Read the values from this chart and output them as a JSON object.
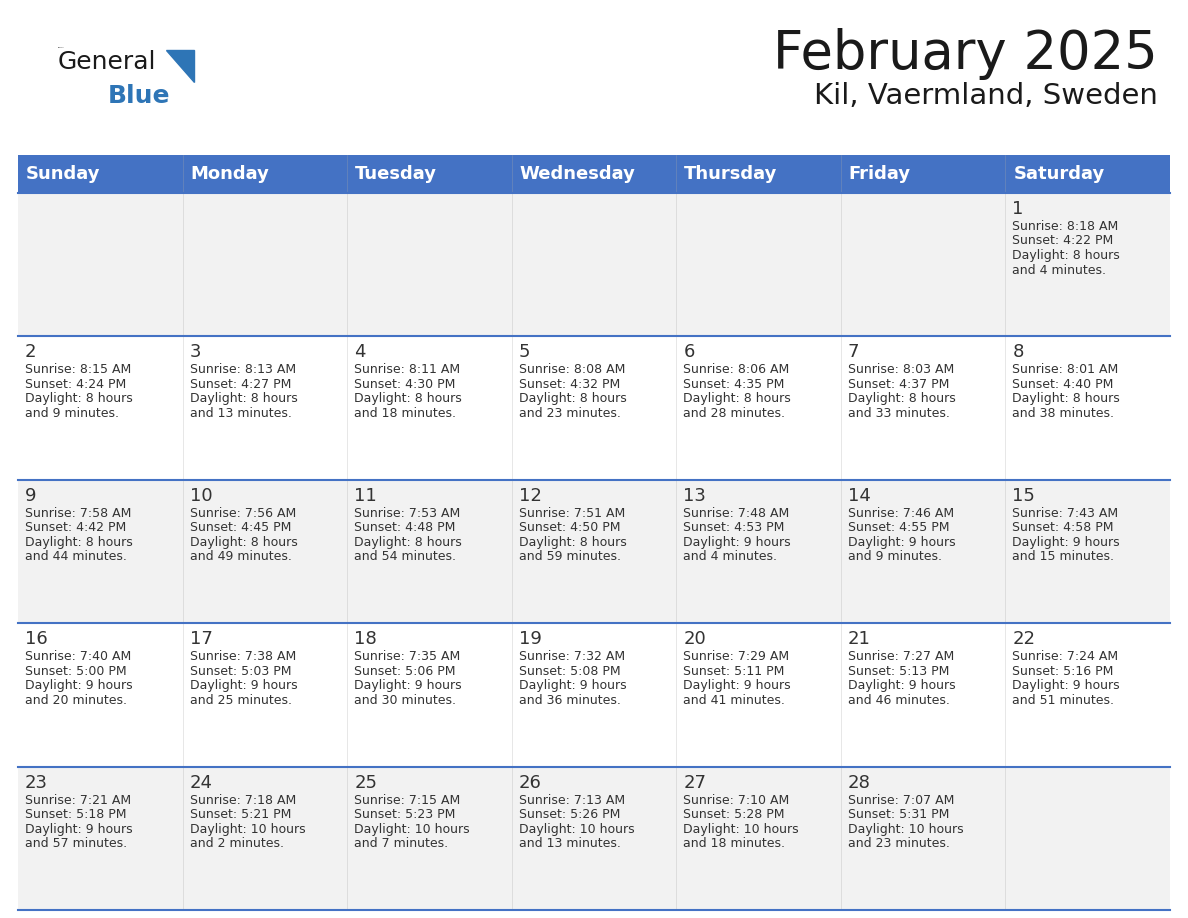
{
  "title": "February 2025",
  "subtitle": "Kil, Vaermland, Sweden",
  "header_bg": "#4472C4",
  "header_text_color": "#FFFFFF",
  "cell_bg_row0": "#F2F2F2",
  "cell_bg_row1": "#FFFFFF",
  "cell_bg_row2": "#F2F2F2",
  "cell_bg_row3": "#FFFFFF",
  "cell_bg_row4": "#F2F2F2",
  "day_headers": [
    "Sunday",
    "Monday",
    "Tuesday",
    "Wednesday",
    "Thursday",
    "Friday",
    "Saturday"
  ],
  "calendar_data": [
    [
      null,
      null,
      null,
      null,
      null,
      null,
      {
        "day": "1",
        "sunrise": "8:18 AM",
        "sunset": "4:22 PM",
        "daylight_line1": "8 hours",
        "daylight_line2": "and 4 minutes."
      }
    ],
    [
      {
        "day": "2",
        "sunrise": "8:15 AM",
        "sunset": "4:24 PM",
        "daylight_line1": "8 hours",
        "daylight_line2": "and 9 minutes."
      },
      {
        "day": "3",
        "sunrise": "8:13 AM",
        "sunset": "4:27 PM",
        "daylight_line1": "8 hours",
        "daylight_line2": "and 13 minutes."
      },
      {
        "day": "4",
        "sunrise": "8:11 AM",
        "sunset": "4:30 PM",
        "daylight_line1": "8 hours",
        "daylight_line2": "and 18 minutes."
      },
      {
        "day": "5",
        "sunrise": "8:08 AM",
        "sunset": "4:32 PM",
        "daylight_line1": "8 hours",
        "daylight_line2": "and 23 minutes."
      },
      {
        "day": "6",
        "sunrise": "8:06 AM",
        "sunset": "4:35 PM",
        "daylight_line1": "8 hours",
        "daylight_line2": "and 28 minutes."
      },
      {
        "day": "7",
        "sunrise": "8:03 AM",
        "sunset": "4:37 PM",
        "daylight_line1": "8 hours",
        "daylight_line2": "and 33 minutes."
      },
      {
        "day": "8",
        "sunrise": "8:01 AM",
        "sunset": "4:40 PM",
        "daylight_line1": "8 hours",
        "daylight_line2": "and 38 minutes."
      }
    ],
    [
      {
        "day": "9",
        "sunrise": "7:58 AM",
        "sunset": "4:42 PM",
        "daylight_line1": "8 hours",
        "daylight_line2": "and 44 minutes."
      },
      {
        "day": "10",
        "sunrise": "7:56 AM",
        "sunset": "4:45 PM",
        "daylight_line1": "8 hours",
        "daylight_line2": "and 49 minutes."
      },
      {
        "day": "11",
        "sunrise": "7:53 AM",
        "sunset": "4:48 PM",
        "daylight_line1": "8 hours",
        "daylight_line2": "and 54 minutes."
      },
      {
        "day": "12",
        "sunrise": "7:51 AM",
        "sunset": "4:50 PM",
        "daylight_line1": "8 hours",
        "daylight_line2": "and 59 minutes."
      },
      {
        "day": "13",
        "sunrise": "7:48 AM",
        "sunset": "4:53 PM",
        "daylight_line1": "9 hours",
        "daylight_line2": "and 4 minutes."
      },
      {
        "day": "14",
        "sunrise": "7:46 AM",
        "sunset": "4:55 PM",
        "daylight_line1": "9 hours",
        "daylight_line2": "and 9 minutes."
      },
      {
        "day": "15",
        "sunrise": "7:43 AM",
        "sunset": "4:58 PM",
        "daylight_line1": "9 hours",
        "daylight_line2": "and 15 minutes."
      }
    ],
    [
      {
        "day": "16",
        "sunrise": "7:40 AM",
        "sunset": "5:00 PM",
        "daylight_line1": "9 hours",
        "daylight_line2": "and 20 minutes."
      },
      {
        "day": "17",
        "sunrise": "7:38 AM",
        "sunset": "5:03 PM",
        "daylight_line1": "9 hours",
        "daylight_line2": "and 25 minutes."
      },
      {
        "day": "18",
        "sunrise": "7:35 AM",
        "sunset": "5:06 PM",
        "daylight_line1": "9 hours",
        "daylight_line2": "and 30 minutes."
      },
      {
        "day": "19",
        "sunrise": "7:32 AM",
        "sunset": "5:08 PM",
        "daylight_line1": "9 hours",
        "daylight_line2": "and 36 minutes."
      },
      {
        "day": "20",
        "sunrise": "7:29 AM",
        "sunset": "5:11 PM",
        "daylight_line1": "9 hours",
        "daylight_line2": "and 41 minutes."
      },
      {
        "day": "21",
        "sunrise": "7:27 AM",
        "sunset": "5:13 PM",
        "daylight_line1": "9 hours",
        "daylight_line2": "and 46 minutes."
      },
      {
        "day": "22",
        "sunrise": "7:24 AM",
        "sunset": "5:16 PM",
        "daylight_line1": "9 hours",
        "daylight_line2": "and 51 minutes."
      }
    ],
    [
      {
        "day": "23",
        "sunrise": "7:21 AM",
        "sunset": "5:18 PM",
        "daylight_line1": "9 hours",
        "daylight_line2": "and 57 minutes."
      },
      {
        "day": "24",
        "sunrise": "7:18 AM",
        "sunset": "5:21 PM",
        "daylight_line1": "10 hours",
        "daylight_line2": "and 2 minutes."
      },
      {
        "day": "25",
        "sunrise": "7:15 AM",
        "sunset": "5:23 PM",
        "daylight_line1": "10 hours",
        "daylight_line2": "and 7 minutes."
      },
      {
        "day": "26",
        "sunrise": "7:13 AM",
        "sunset": "5:26 PM",
        "daylight_line1": "10 hours",
        "daylight_line2": "and 13 minutes."
      },
      {
        "day": "27",
        "sunrise": "7:10 AM",
        "sunset": "5:28 PM",
        "daylight_line1": "10 hours",
        "daylight_line2": "and 18 minutes."
      },
      {
        "day": "28",
        "sunrise": "7:07 AM",
        "sunset": "5:31 PM",
        "daylight_line1": "10 hours",
        "daylight_line2": "and 23 minutes."
      },
      null
    ]
  ],
  "logo_general_color": "#1a1a1a",
  "logo_blue_color": "#2E75B6",
  "logo_triangle_color": "#2E75B6",
  "line_color": "#4472C4",
  "title_color": "#1a1a1a",
  "subtitle_color": "#1a1a1a",
  "day_num_color": "#333333",
  "cell_text_color": "#333333"
}
